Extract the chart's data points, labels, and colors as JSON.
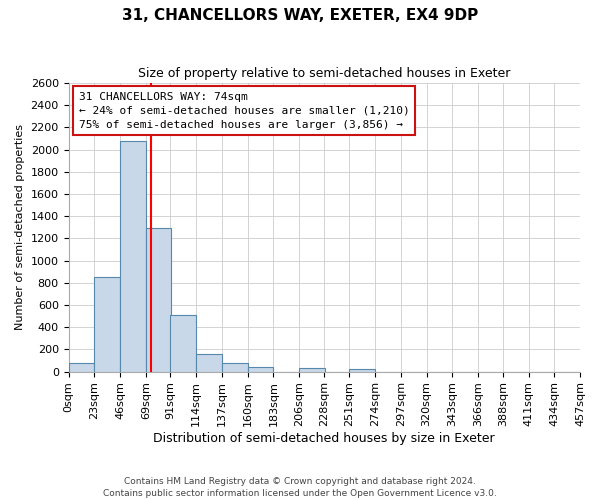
{
  "title": "31, CHANCELLORS WAY, EXETER, EX4 9DP",
  "subtitle": "Size of property relative to semi-detached houses in Exeter",
  "xlabel": "Distribution of semi-detached houses by size in Exeter",
  "ylabel": "Number of semi-detached properties",
  "bin_labels": [
    "0sqm",
    "23sqm",
    "46sqm",
    "69sqm",
    "91sqm",
    "114sqm",
    "137sqm",
    "160sqm",
    "183sqm",
    "206sqm",
    "228sqm",
    "251sqm",
    "274sqm",
    "297sqm",
    "320sqm",
    "343sqm",
    "366sqm",
    "388sqm",
    "411sqm",
    "434sqm",
    "457sqm"
  ],
  "bar_heights": [
    75,
    850,
    2080,
    1290,
    510,
    160,
    75,
    40,
    0,
    30,
    0,
    20,
    0,
    0,
    0,
    0,
    0,
    0,
    0,
    0
  ],
  "bar_color": "#c8d8e8",
  "bar_edge_color": "#5588aa",
  "property_line_x": 74,
  "annotation_title": "31 CHANCELLORS WAY: 74sqm",
  "annotation_line1": "← 24% of semi-detached houses are smaller (1,210)",
  "annotation_line2": "75% of semi-detached houses are larger (3,856) →",
  "ylim": [
    0,
    2600
  ],
  "yticks": [
    0,
    200,
    400,
    600,
    800,
    1000,
    1200,
    1400,
    1600,
    1800,
    2000,
    2200,
    2400,
    2600
  ],
  "footer1": "Contains HM Land Registry data © Crown copyright and database right 2024.",
  "footer2": "Contains public sector information licensed under the Open Government Licence v3.0.",
  "bin_width": 23,
  "bin_starts": [
    0,
    23,
    46,
    69,
    91,
    114,
    137,
    160,
    183,
    206,
    228,
    251,
    274,
    297,
    320,
    343,
    366,
    388,
    411,
    434
  ],
  "xlim": [
    0,
    457
  ]
}
